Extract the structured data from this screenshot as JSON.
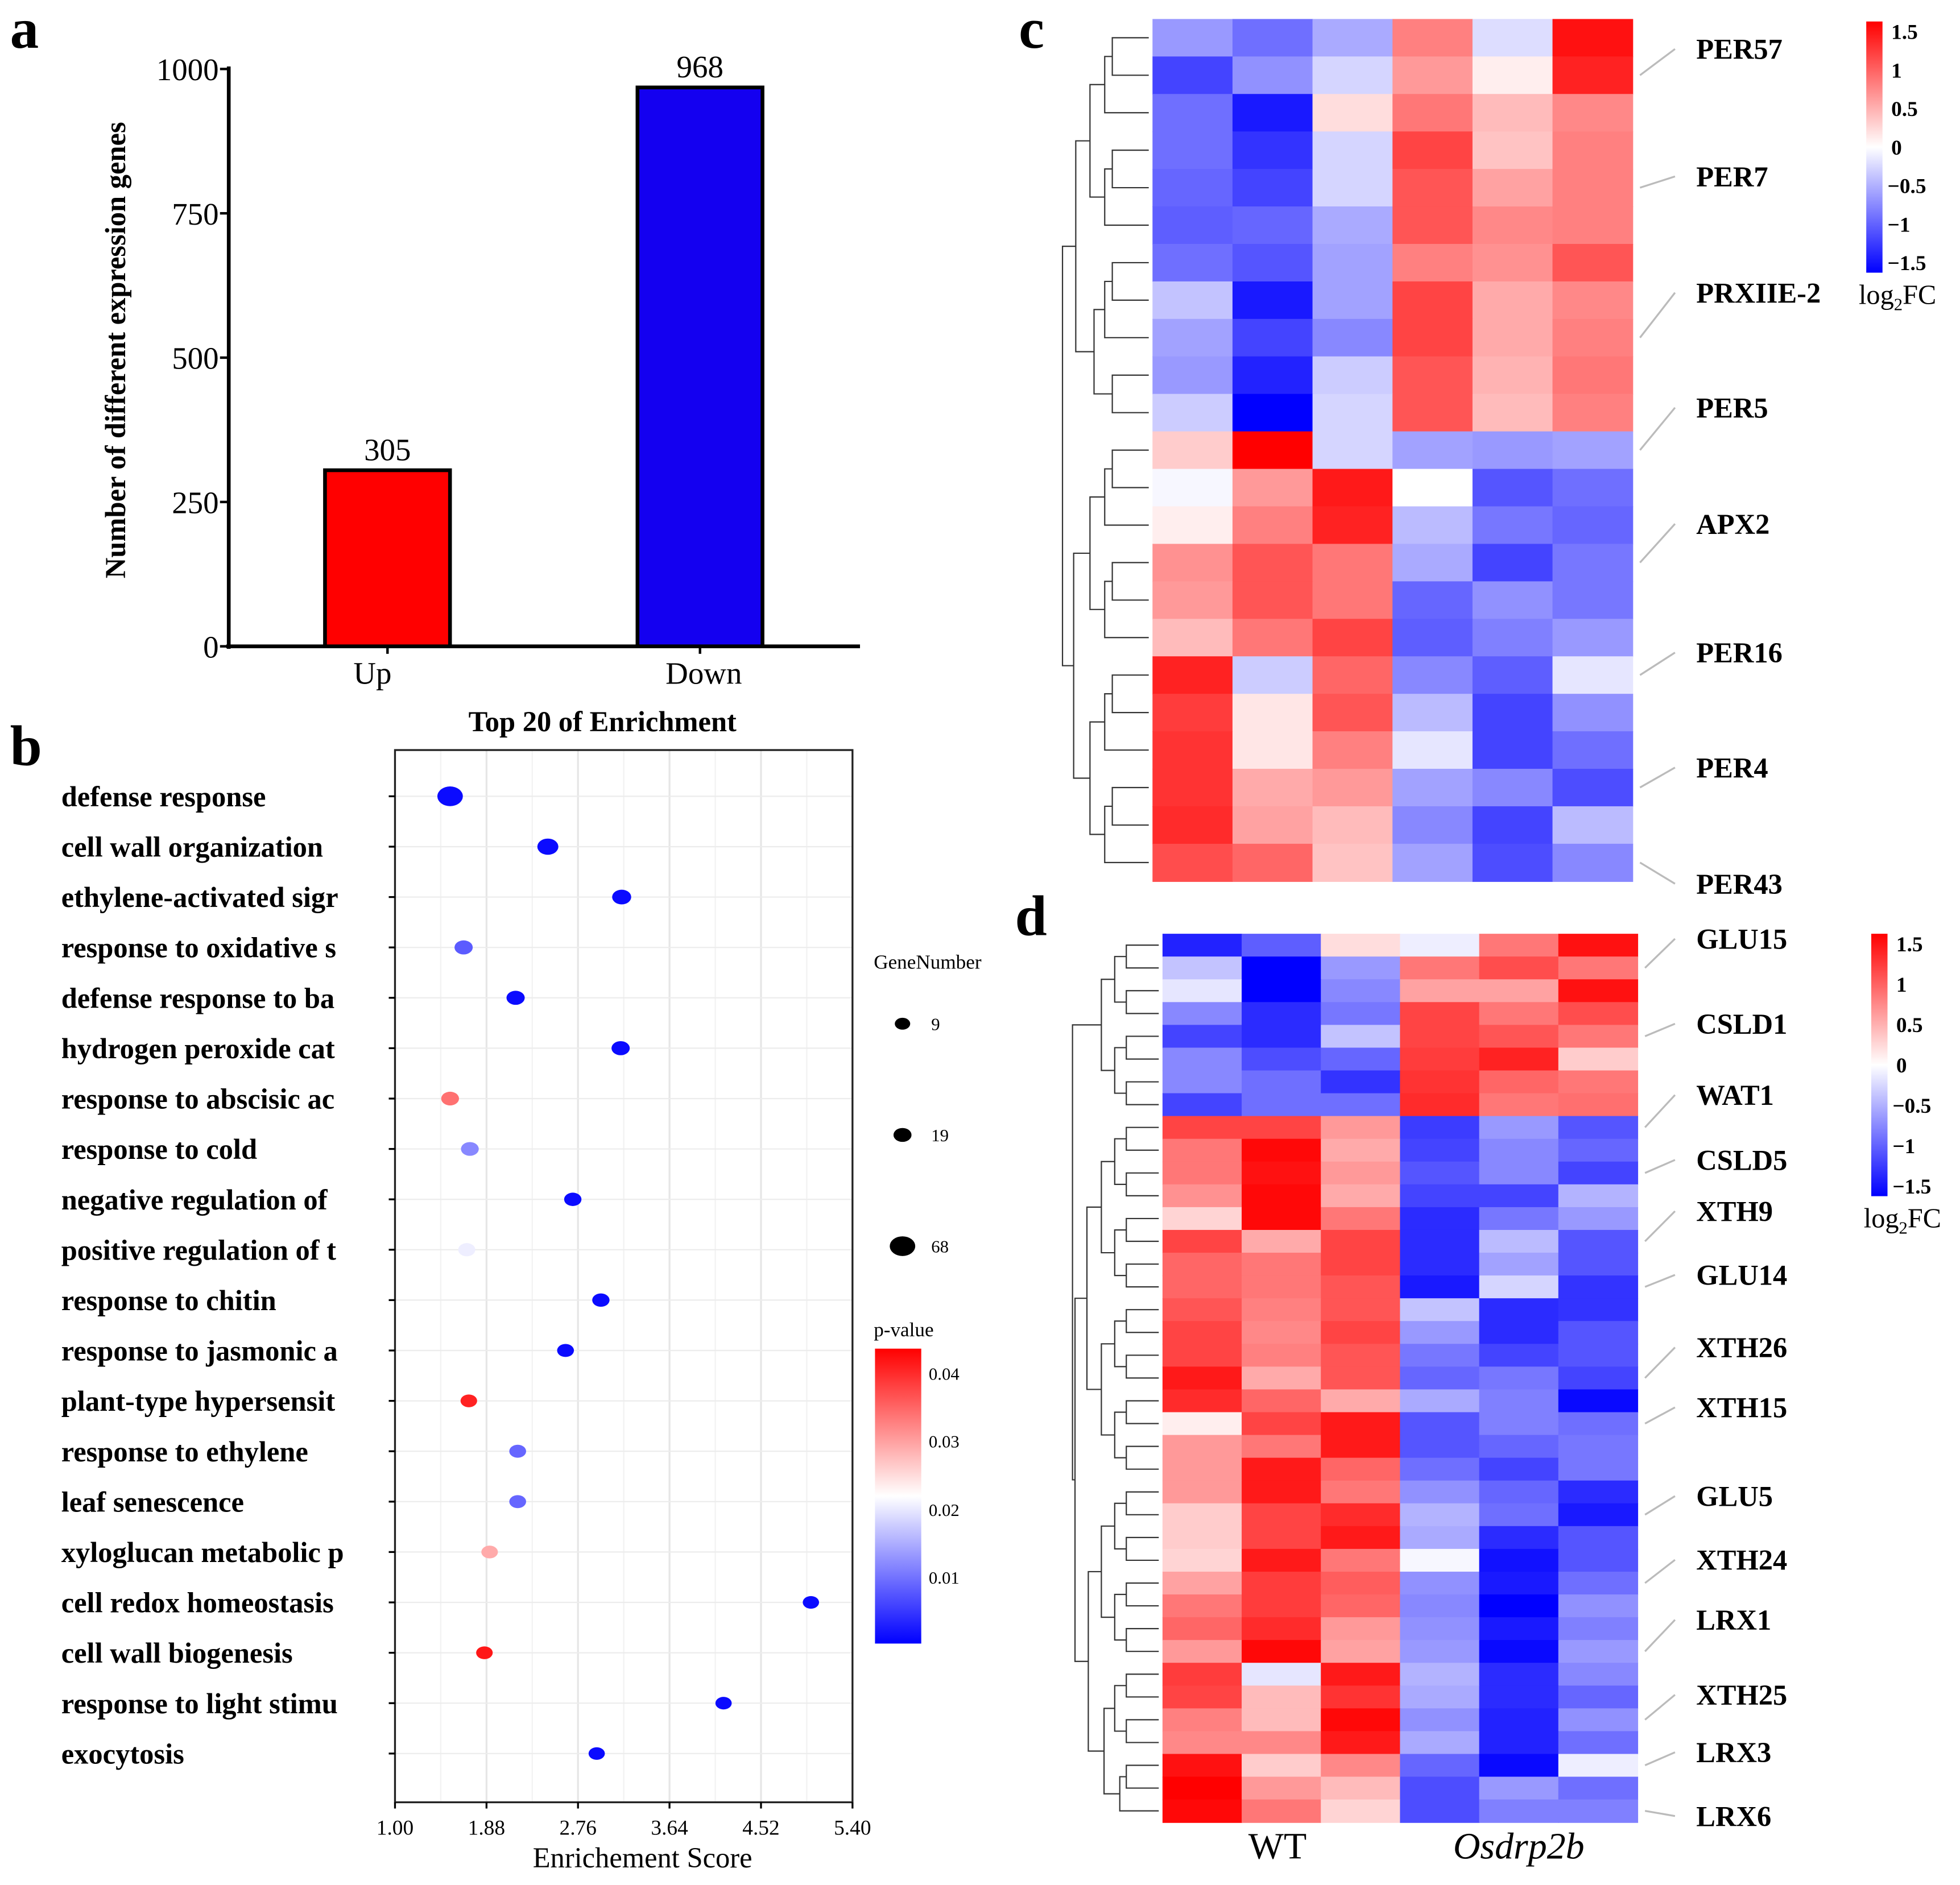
{
  "panel_letters": {
    "a": "a",
    "b": "b",
    "c": "c",
    "d": "d"
  },
  "chart_data": [
    {
      "id": "a",
      "type": "bar",
      "categories": [
        "Up",
        "Down"
      ],
      "values": [
        305,
        968
      ],
      "data_labels": [
        "305",
        "968"
      ],
      "colors": [
        "#ff0000",
        "#1400f0"
      ],
      "ylabel": "Number of different expression genes",
      "xlabel": "",
      "ylim": [
        0,
        1000
      ],
      "yticks": [
        "0",
        "250",
        "500",
        "750",
        "1000"
      ]
    },
    {
      "id": "b",
      "type": "scatter",
      "title": "Top 20 of Enrichment",
      "xlabel": "Enrichement Score",
      "xlim": [
        1.0,
        5.4
      ],
      "xticks": [
        "1.00",
        "1.88",
        "2.76",
        "3.64",
        "4.52",
        "5.40"
      ],
      "grid": true,
      "terms": [
        "defense response",
        "cell wall organization",
        "ethylene-activated sigr",
        "response to oxidative s",
        "defense response to ba",
        "hydrogen peroxide cat",
        "response to abscisic ac",
        "response to cold",
        "negative regulation of",
        "positive regulation of t",
        "response to chitin",
        "response to jasmonic a",
        "plant-type hypersensit",
        "response to ethylene",
        "leaf senescence",
        "xyloglucan metabolic p",
        "cell redox homeostasis",
        "cell wall biogenesis",
        "response to light stimu",
        "exocytosis"
      ],
      "enrichment": [
        1.53,
        2.47,
        3.18,
        1.66,
        2.16,
        3.17,
        1.53,
        1.72,
        2.71,
        1.69,
        2.98,
        2.64,
        1.71,
        2.18,
        2.18,
        1.91,
        5.0,
        1.86,
        4.16,
        2.94
      ],
      "gene_number": [
        68,
        35,
        24,
        20,
        20,
        20,
        18,
        18,
        16,
        15,
        16,
        14,
        13,
        14,
        14,
        13,
        12,
        13,
        12,
        12
      ],
      "p_value": [
        0.001,
        0.001,
        0.001,
        0.008,
        0.001,
        0.001,
        0.035,
        0.012,
        0.001,
        0.021,
        0.001,
        0.001,
        0.042,
        0.009,
        0.009,
        0.03,
        0.001,
        0.043,
        0.001,
        0.001
      ],
      "size_legend": {
        "title": "GeneNumber",
        "values": [
          "9",
          "19",
          "68"
        ]
      },
      "color_legend": {
        "title": "p-value",
        "ticks": [
          "0.04",
          "0.03",
          "0.02",
          "0.01"
        ],
        "range": [
          0.0,
          0.045
        ],
        "low_color": "#0000ff",
        "mid_color": "#ffffff",
        "high_color": "#ff0000"
      }
    },
    {
      "id": "c",
      "type": "heatmap",
      "value_range": [
        -1.5,
        1.5
      ],
      "legend_ticks": [
        "1.5",
        "1",
        "0.5",
        "0",
        "−0.5",
        "−1",
        "−1.5"
      ],
      "legend_label": "log",
      "legend_sub": "2",
      "legend_suffix": "FC",
      "gene_labels": [
        "PER57",
        "PER7",
        "PRXIIE-2",
        "PER5",
        "APX2",
        "PER16",
        "PER4",
        "PER43"
      ],
      "values": [
        [
          -0.6,
          -0.85,
          -0.5,
          0.75,
          -0.2,
          1.4
        ],
        [
          -1.1,
          -0.65,
          -0.25,
          0.6,
          0.1,
          1.3
        ],
        [
          -0.85,
          -1.35,
          0.2,
          0.8,
          0.4,
          0.7
        ],
        [
          -0.85,
          -1.2,
          -0.25,
          1.1,
          0.35,
          0.75
        ],
        [
          -0.9,
          -1.1,
          -0.25,
          1.0,
          0.55,
          0.75
        ],
        [
          -0.95,
          -0.9,
          -0.5,
          1.0,
          0.7,
          0.75
        ],
        [
          -0.85,
          -1.0,
          -0.55,
          0.75,
          0.65,
          1.0
        ],
        [
          -0.35,
          -1.35,
          -0.55,
          1.1,
          0.5,
          0.7
        ],
        [
          -0.55,
          -1.1,
          -0.7,
          1.1,
          0.5,
          0.75
        ],
        [
          -0.6,
          -1.3,
          -0.3,
          1.0,
          0.45,
          0.8
        ],
        [
          -0.3,
          -1.5,
          -0.25,
          1.0,
          0.4,
          0.75
        ],
        [
          0.3,
          1.5,
          -0.25,
          -0.55,
          -0.6,
          -0.55
        ],
        [
          -0.05,
          0.6,
          1.35,
          0.0,
          -1.0,
          -0.85
        ],
        [
          0.1,
          0.75,
          1.3,
          -0.4,
          -0.8,
          -0.9
        ],
        [
          0.65,
          1.0,
          0.8,
          -0.5,
          -1.1,
          -0.8
        ],
        [
          0.6,
          1.0,
          0.8,
          -0.9,
          -0.65,
          -0.8
        ],
        [
          0.4,
          0.8,
          1.1,
          -0.95,
          -0.75,
          -0.6
        ],
        [
          1.3,
          -0.3,
          0.9,
          -0.7,
          -0.95,
          -0.15
        ],
        [
          1.15,
          0.15,
          1.0,
          -0.4,
          -1.1,
          -0.65
        ],
        [
          1.2,
          0.15,
          0.75,
          -0.15,
          -1.1,
          -0.85
        ],
        [
          1.2,
          0.5,
          0.6,
          -0.55,
          -0.7,
          -1.05
        ],
        [
          1.25,
          0.55,
          0.4,
          -0.7,
          -1.1,
          -0.4
        ],
        [
          1.05,
          0.9,
          0.35,
          -0.55,
          -1.05,
          -0.7
        ]
      ]
    },
    {
      "id": "d",
      "type": "heatmap",
      "value_range": [
        -1.5,
        1.5
      ],
      "legend_ticks": [
        "1.5",
        "1",
        "0.5",
        "0",
        "−0.5",
        "−1",
        "−1.5"
      ],
      "legend_label": "log",
      "legend_sub": "2",
      "legend_suffix": "FC",
      "group_labels": [
        "WT",
        "Osdrp2b"
      ],
      "gene_labels": [
        "GLU15",
        "CSLD1",
        "WAT1",
        "CSLD5",
        "XTH9",
        "GLU14",
        "XTH26",
        "XTH15",
        "GLU5",
        "XTH24",
        "LRX1",
        "XTH25",
        "LRX3",
        "LRX6"
      ],
      "values": [
        [
          -1.3,
          -0.95,
          0.2,
          -0.1,
          0.8,
          1.4
        ],
        [
          -0.35,
          -1.5,
          -0.6,
          0.8,
          1.05,
          0.8
        ],
        [
          -0.15,
          -1.5,
          -0.7,
          0.55,
          0.55,
          1.4
        ],
        [
          -0.7,
          -1.25,
          -0.8,
          1.1,
          0.8,
          1.05
        ],
        [
          -1.1,
          -1.25,
          -0.35,
          1.1,
          1.0,
          0.8
        ],
        [
          -0.7,
          -1.05,
          -0.9,
          1.15,
          1.3,
          0.3
        ],
        [
          -0.7,
          -0.85,
          -1.2,
          1.2,
          0.9,
          0.8
        ],
        [
          -1.1,
          -0.85,
          -0.85,
          1.25,
          0.8,
          0.85
        ],
        [
          1.1,
          1.1,
          0.6,
          -1.15,
          -0.6,
          -1.0
        ],
        [
          0.8,
          1.45,
          0.5,
          -1.1,
          -0.7,
          -0.9
        ],
        [
          0.8,
          1.4,
          0.6,
          -1.0,
          -0.7,
          -1.1
        ],
        [
          0.65,
          1.45,
          0.5,
          -1.1,
          -1.1,
          -0.45
        ],
        [
          0.25,
          1.45,
          0.8,
          -1.25,
          -0.8,
          -0.6
        ],
        [
          1.1,
          0.5,
          1.1,
          -1.25,
          -0.4,
          -1.0
        ],
        [
          0.9,
          0.8,
          1.1,
          -1.25,
          -0.55,
          -1.0
        ],
        [
          0.9,
          0.8,
          1.0,
          -1.35,
          -0.25,
          -1.2
        ],
        [
          1.0,
          0.75,
          1.0,
          -0.35,
          -1.25,
          -1.2
        ],
        [
          1.1,
          0.7,
          1.1,
          -0.6,
          -1.25,
          -1.0
        ],
        [
          1.1,
          0.75,
          1.0,
          -0.8,
          -1.1,
          -1.0
        ],
        [
          1.35,
          0.5,
          1.0,
          -0.9,
          -0.8,
          -1.1
        ],
        [
          1.25,
          0.9,
          0.5,
          -0.5,
          -0.75,
          -1.45
        ],
        [
          0.1,
          1.1,
          1.35,
          -1.0,
          -0.75,
          -0.85
        ],
        [
          0.6,
          0.8,
          1.35,
          -1.0,
          -0.9,
          -0.8
        ],
        [
          0.6,
          1.35,
          0.9,
          -0.85,
          -1.1,
          -0.8
        ],
        [
          0.6,
          1.35,
          0.8,
          -0.65,
          -0.9,
          -1.25
        ],
        [
          0.3,
          1.1,
          1.25,
          -0.45,
          -0.85,
          -1.35
        ],
        [
          0.3,
          1.1,
          1.35,
          -0.5,
          -1.25,
          -1.0
        ],
        [
          0.25,
          1.35,
          0.8,
          -0.05,
          -1.4,
          -1.0
        ],
        [
          0.55,
          1.15,
          0.95,
          -0.65,
          -1.35,
          -0.85
        ],
        [
          0.8,
          1.15,
          0.9,
          -0.7,
          -1.5,
          -0.65
        ],
        [
          0.9,
          1.25,
          0.6,
          -0.65,
          -1.35,
          -0.75
        ],
        [
          0.6,
          1.45,
          0.55,
          -0.6,
          -1.45,
          -0.6
        ],
        [
          1.15,
          -0.15,
          1.35,
          -0.45,
          -1.25,
          -0.7
        ],
        [
          1.1,
          0.4,
          1.2,
          -0.5,
          -1.25,
          -0.9
        ],
        [
          0.75,
          0.4,
          1.45,
          -0.65,
          -1.3,
          -0.65
        ],
        [
          0.7,
          0.7,
          1.35,
          -0.5,
          -1.3,
          -0.85
        ],
        [
          1.4,
          0.3,
          0.7,
          -0.9,
          -1.45,
          -0.1
        ],
        [
          1.5,
          0.6,
          0.4,
          -1.05,
          -0.6,
          -0.85
        ],
        [
          1.45,
          0.8,
          0.25,
          -1.05,
          -0.75,
          -0.75
        ]
      ]
    }
  ]
}
